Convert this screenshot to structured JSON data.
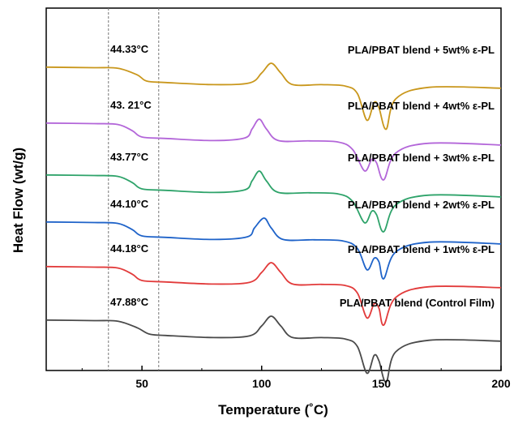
{
  "chart_data": {
    "type": "line",
    "title": "",
    "xlabel": "Temperature (˚C)",
    "ylabel": "Heat Flow (wt/g)",
    "xlim": [
      10,
      200
    ],
    "xticks": [
      50,
      100,
      150,
      200
    ],
    "xtick_labels": [
      "50",
      "100",
      "150",
      "200"
    ],
    "minor_xticks": [
      25,
      75,
      125,
      175
    ],
    "y_ticks_shown": false,
    "grid": false,
    "legend": "none (curves labeled directly on the right)",
    "reference_lines_x": [
      36,
      57
    ],
    "reference_line_style": "dashed gray vertical",
    "series": [
      {
        "name": "PLA/PBAT blend + 5wt% ε-PL",
        "color": "#C9971C",
        "tg_label": "44.33°C",
        "x": [
          10,
          30,
          40,
          48,
          52,
          60,
          80,
          95,
          100,
          104,
          108,
          113,
          125,
          135,
          140,
          144,
          147,
          149,
          152,
          156,
          170,
          200
        ],
        "y": [
          0.22,
          0.25,
          0.28,
          0.65,
          1.0,
          1.08,
          1.2,
          1.1,
          0.55,
          0.0,
          0.55,
          1.2,
          1.2,
          1.28,
          1.7,
          3.2,
          2.2,
          2.5,
          3.7,
          2.0,
          1.35,
          1.4
        ]
      },
      {
        "name": "PLA/PBAT blend + 4wt% ε-PL",
        "color": "#B366D9",
        "tg_label": "43. 21°C",
        "x": [
          10,
          30,
          40,
          46,
          50,
          60,
          80,
          93,
          96,
          99,
          102,
          107,
          120,
          132,
          138,
          143,
          146,
          148,
          151,
          156,
          170,
          200
        ],
        "y": [
          0.22,
          0.25,
          0.3,
          0.65,
          1.0,
          1.08,
          1.2,
          1.05,
          0.55,
          0.0,
          0.55,
          1.2,
          1.22,
          1.28,
          1.7,
          2.9,
          2.25,
          2.45,
          3.4,
          1.9,
          1.35,
          1.45
        ]
      },
      {
        "name": "PLA/PBAT blend + 3wt% ε-PL",
        "color": "#2EA36A",
        "tg_label": "43.77°C",
        "x": [
          10,
          30,
          40,
          46,
          50,
          60,
          80,
          93,
          96,
          99,
          102,
          107,
          120,
          132,
          138,
          143,
          146,
          148,
          151,
          156,
          170,
          200
        ],
        "y": [
          0.22,
          0.25,
          0.3,
          0.65,
          1.0,
          1.08,
          1.2,
          1.05,
          0.55,
          0.0,
          0.55,
          1.2,
          1.22,
          1.28,
          1.7,
          2.9,
          2.25,
          2.45,
          3.4,
          1.9,
          1.35,
          1.45
        ]
      },
      {
        "name": "PLA/PBAT blend + 2wt% ε-PL",
        "color": "#1F63C9",
        "tg_label": "44.10°C",
        "x": [
          10,
          30,
          40,
          46,
          50,
          60,
          80,
          94,
          97,
          101,
          104,
          109,
          122,
          134,
          140,
          144,
          147,
          149,
          151,
          156,
          170,
          200
        ],
        "y": [
          0.22,
          0.25,
          0.3,
          0.65,
          1.0,
          1.08,
          1.2,
          1.05,
          0.55,
          0.0,
          0.55,
          1.2,
          1.22,
          1.28,
          1.7,
          2.9,
          2.25,
          2.45,
          3.4,
          1.9,
          1.35,
          1.45
        ]
      },
      {
        "name": "PLA/PBAT blend + 1wt% ε-PL",
        "color": "#E23B3B",
        "tg_label": "44.18°C",
        "x": [
          10,
          30,
          40,
          46,
          50,
          60,
          80,
          95,
          100,
          104,
          108,
          113,
          125,
          135,
          140,
          144,
          147,
          149,
          151,
          156,
          170,
          200
        ],
        "y": [
          0.22,
          0.25,
          0.3,
          0.65,
          1.0,
          1.08,
          1.2,
          1.1,
          0.55,
          0.0,
          0.55,
          1.2,
          1.22,
          1.28,
          1.7,
          3.1,
          2.3,
          2.55,
          3.5,
          1.95,
          1.35,
          1.4
        ]
      },
      {
        "name": "PLA/PBAT blend (Control Film)",
        "color": "#4A4A4A",
        "tg_label": "47.88°C",
        "x": [
          10,
          30,
          40,
          48,
          53,
          60,
          80,
          95,
          100,
          104,
          108,
          113,
          125,
          135,
          140,
          144,
          147,
          149,
          152,
          156,
          170,
          200
        ],
        "y": [
          0.22,
          0.25,
          0.28,
          0.65,
          1.0,
          1.08,
          1.2,
          1.1,
          0.55,
          0.0,
          0.55,
          1.2,
          1.2,
          1.28,
          1.7,
          3.2,
          2.2,
          2.5,
          3.7,
          2.0,
          1.35,
          1.4
        ]
      }
    ]
  }
}
